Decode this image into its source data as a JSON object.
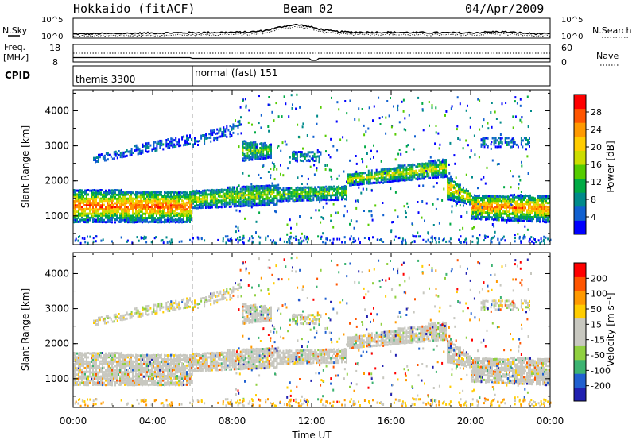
{
  "header": {
    "station": "Hokkaido (fitACF)",
    "beam": "Beam 02",
    "date": "04/Apr/2009"
  },
  "noise_panel": {
    "left_label": "N.Sky",
    "right_label": "N.Search",
    "left_ticks": [
      "10^5",
      "10^0"
    ],
    "right_ticks": [
      "10^5",
      "10^0"
    ]
  },
  "freq_panel": {
    "left_label": "Freq.",
    "left_unit": "[MHz]",
    "right_label": "Nave",
    "left_ticks": [
      "18",
      "8"
    ],
    "right_ticks": [
      "60",
      "0"
    ]
  },
  "cpid_panel": {
    "label": "CPID",
    "modes": [
      {
        "name": "themis 3300",
        "start_hour": 0
      },
      {
        "name": "normal (fast) 151",
        "start_hour": 6
      }
    ]
  },
  "chart_data": [
    {
      "type": "heatmap",
      "title": "",
      "xlabel": "",
      "ylabel": "Slant Range [km]",
      "xlim": [
        0,
        24
      ],
      "ylim": [
        180,
        4600
      ],
      "yticks": [
        "1000",
        "2000",
        "3000",
        "4000"
      ],
      "colorbar": {
        "label": "Power [dB]",
        "ticks": [
          "28",
          "24",
          "20",
          "16",
          "12",
          "8",
          "4"
        ],
        "colors": [
          "#0000ff",
          "#1060d0",
          "#008a8a",
          "#00aa44",
          "#55cc00",
          "#ccdd00",
          "#ffcc00",
          "#ff9900",
          "#ff5500",
          "#ff0000"
        ]
      },
      "bands": [
        {
          "start": 0,
          "end": 6,
          "lower": [
            850,
            850
          ],
          "upper": [
            1800,
            1750
          ],
          "core": 0.85
        },
        {
          "start": 6,
          "end": 10.3,
          "lower": [
            1250,
            1350
          ],
          "upper": [
            1800,
            1950
          ],
          "core": 0.5
        },
        {
          "start": 10.3,
          "end": 13.8,
          "lower": [
            1450,
            1500
          ],
          "upper": [
            1850,
            1950
          ],
          "core": 0.45
        },
        {
          "start": 13.8,
          "end": 18.8,
          "lower": [
            1900,
            2150
          ],
          "upper": [
            2250,
            2700
          ],
          "core": 0.55
        },
        {
          "start": 18.8,
          "end": 20,
          "lower": [
            1500,
            1350
          ],
          "upper": [
            2200,
            1700
          ],
          "core": 0.7
        },
        {
          "start": 20,
          "end": 24,
          "lower": [
            950,
            850
          ],
          "upper": [
            1650,
            1650
          ],
          "core": 0.8
        },
        {
          "start": 1,
          "end": 6,
          "lower": [
            2550,
            3100
          ],
          "upper": [
            2800,
            3400
          ],
          "core": 0.1
        },
        {
          "start": 6,
          "end": 8.5,
          "lower": [
            3000,
            3400
          ],
          "upper": [
            3300,
            3800
          ],
          "core": 0.1
        },
        {
          "start": 8.5,
          "end": 10,
          "lower": [
            2600,
            2700
          ],
          "upper": [
            3200,
            3100
          ],
          "core": 0.45
        },
        {
          "start": 11,
          "end": 12.5,
          "lower": [
            2600,
            2600
          ],
          "upper": [
            2900,
            2900
          ],
          "core": 0.2
        },
        {
          "start": 20.5,
          "end": 23,
          "lower": [
            3000,
            3000
          ],
          "upper": [
            3300,
            3300
          ],
          "core": 0.15
        }
      ]
    },
    {
      "type": "heatmap",
      "title": "",
      "xlabel": "Time UT",
      "ylabel": "Slant Range [km]",
      "xlim": [
        0,
        24
      ],
      "ylim": [
        180,
        4600
      ],
      "xticks": [
        "00:00",
        "04:00",
        "08:00",
        "12:00",
        "16:00",
        "20:00",
        "00:00"
      ],
      "yticks": [
        "1000",
        "2000",
        "3000",
        "4000"
      ],
      "colorbar": {
        "label": "Velocity [m s⁻¹]",
        "ticks": [
          "200",
          "100",
          "50",
          "15",
          "-15",
          "-50",
          "-100",
          "-200"
        ],
        "colors": [
          "#2020b0",
          "#2060d0",
          "#3cb371",
          "#90d040",
          "#c8c8c0",
          "#c8c8c0",
          "#ffcc00",
          "#ff9900",
          "#ff5500",
          "#ff0000"
        ]
      },
      "ground_scatter_color": "#c8c8c0"
    }
  ]
}
